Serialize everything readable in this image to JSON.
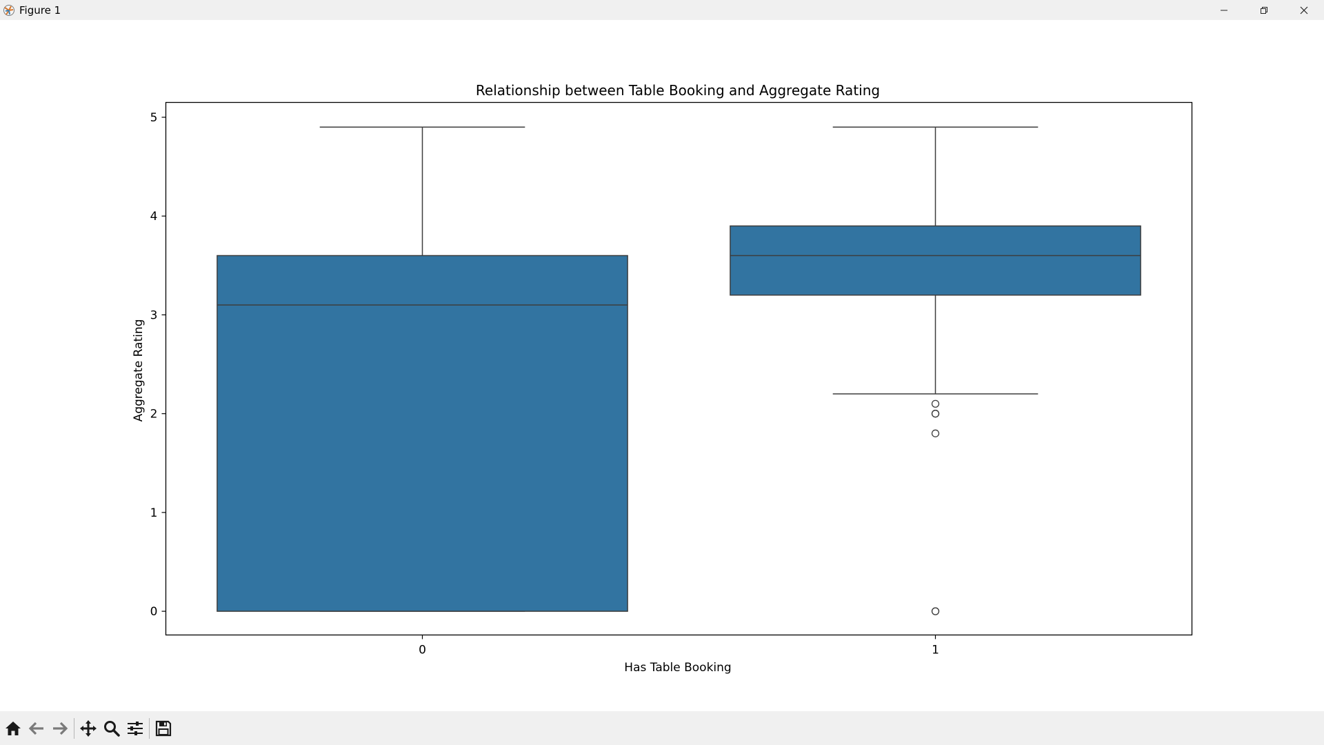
{
  "window": {
    "title": "Figure 1"
  },
  "toolbar": {
    "buttons": [
      {
        "name": "home-icon"
      },
      {
        "name": "back-arrow-icon"
      },
      {
        "name": "forward-arrow-icon"
      },
      {
        "name": "pan-icon"
      },
      {
        "name": "zoom-icon"
      },
      {
        "name": "configure-subplots-icon"
      },
      {
        "name": "save-icon"
      }
    ]
  },
  "chart_data": {
    "type": "box",
    "title": "Relationship between Table Booking and Aggregate Rating",
    "xlabel": "Has Table Booking",
    "ylabel": "Aggregate Rating",
    "categories": [
      "0",
      "1"
    ],
    "ylim": [
      -0.24,
      5.15
    ],
    "yticks": [
      0,
      1,
      2,
      3,
      4,
      5
    ],
    "box_color": "#3274a1",
    "line_color": "#3d3d3d",
    "boxes": [
      {
        "category": "0",
        "whisker_low": 0.0,
        "q1": 0.0,
        "median": 3.1,
        "q3": 3.6,
        "whisker_high": 4.9,
        "outliers": []
      },
      {
        "category": "1",
        "whisker_low": 2.2,
        "q1": 3.2,
        "median": 3.6,
        "q3": 3.9,
        "whisker_high": 4.9,
        "outliers": [
          2.1,
          2.0,
          2.0,
          1.8,
          0.0,
          0.0
        ]
      }
    ],
    "grid": false,
    "legend": "none"
  }
}
